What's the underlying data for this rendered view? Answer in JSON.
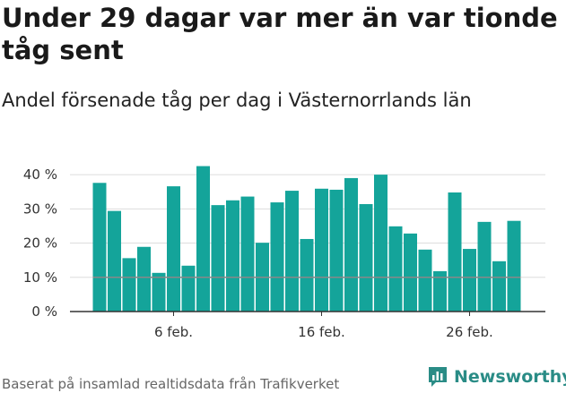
{
  "title": "Under 29 dagar var mer än var tionde tåg sent",
  "subtitle": "Andel försenade tåg per dag i Västernorrlands län",
  "footer": "Baserat på insamlad realtidsdata från Trafikverket",
  "brand": "Newsworthy",
  "colors": {
    "bar": "#14a49a",
    "reference_line": "#888888",
    "brand": "#2a8c86",
    "grid": "#dddddd"
  },
  "chart_data": {
    "type": "bar",
    "title": "Under 29 dagar var mer än var tionde tåg sent",
    "subtitle": "Andel försenade tåg per dag i Västernorrlands län",
    "xlabel": "",
    "ylabel": "",
    "ylim": [
      0,
      45
    ],
    "y_ticks": [
      0,
      10,
      20,
      30,
      40
    ],
    "y_tick_labels": [
      "0 %",
      "10 %",
      "20 %",
      "30 %",
      "40 %"
    ],
    "x_tick_labels": [
      {
        "index": 5,
        "label": "6 feb."
      },
      {
        "index": 15,
        "label": "16 feb."
      },
      {
        "index": 25,
        "label": "26 feb."
      }
    ],
    "reference_line": 10,
    "grid": true,
    "values": [
      37.6,
      29.4,
      15.6,
      18.9,
      11.3,
      36.6,
      13.4,
      42.5,
      31.1,
      32.5,
      33.6,
      20.1,
      31.9,
      35.3,
      21.2,
      35.9,
      35.6,
      39.0,
      31.4,
      40.0,
      24.9,
      22.8,
      18.1,
      11.8,
      34.8,
      18.3,
      26.2,
      14.7,
      26.5
    ]
  }
}
